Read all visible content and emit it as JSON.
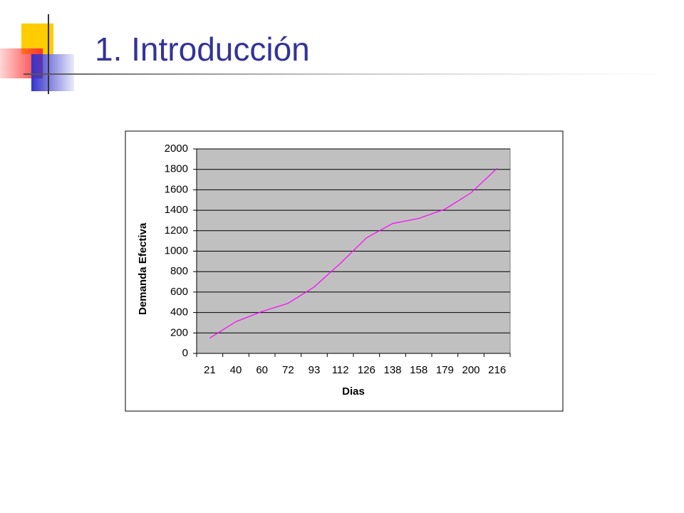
{
  "header": {
    "title": "1. Introducción"
  },
  "chart_data": {
    "type": "line",
    "x_label": "Dias",
    "y_label": "Demanda Efectiva",
    "categories": [
      "21",
      "40",
      "60",
      "72",
      "93",
      "112",
      "126",
      "138",
      "158",
      "179",
      "200",
      "216"
    ],
    "series": [
      {
        "color": "#ff00ff",
        "values": [
          150,
          310,
          410,
          490,
          650,
          880,
          1130,
          1270,
          1320,
          1410,
          1570,
          1810
        ]
      }
    ],
    "ylim": [
      0,
      2000
    ],
    "yticks": [
      0,
      200,
      400,
      600,
      800,
      1000,
      1200,
      1400,
      1600,
      1800,
      2000
    ],
    "grid": true,
    "plot_background": "#c0c0c0"
  }
}
